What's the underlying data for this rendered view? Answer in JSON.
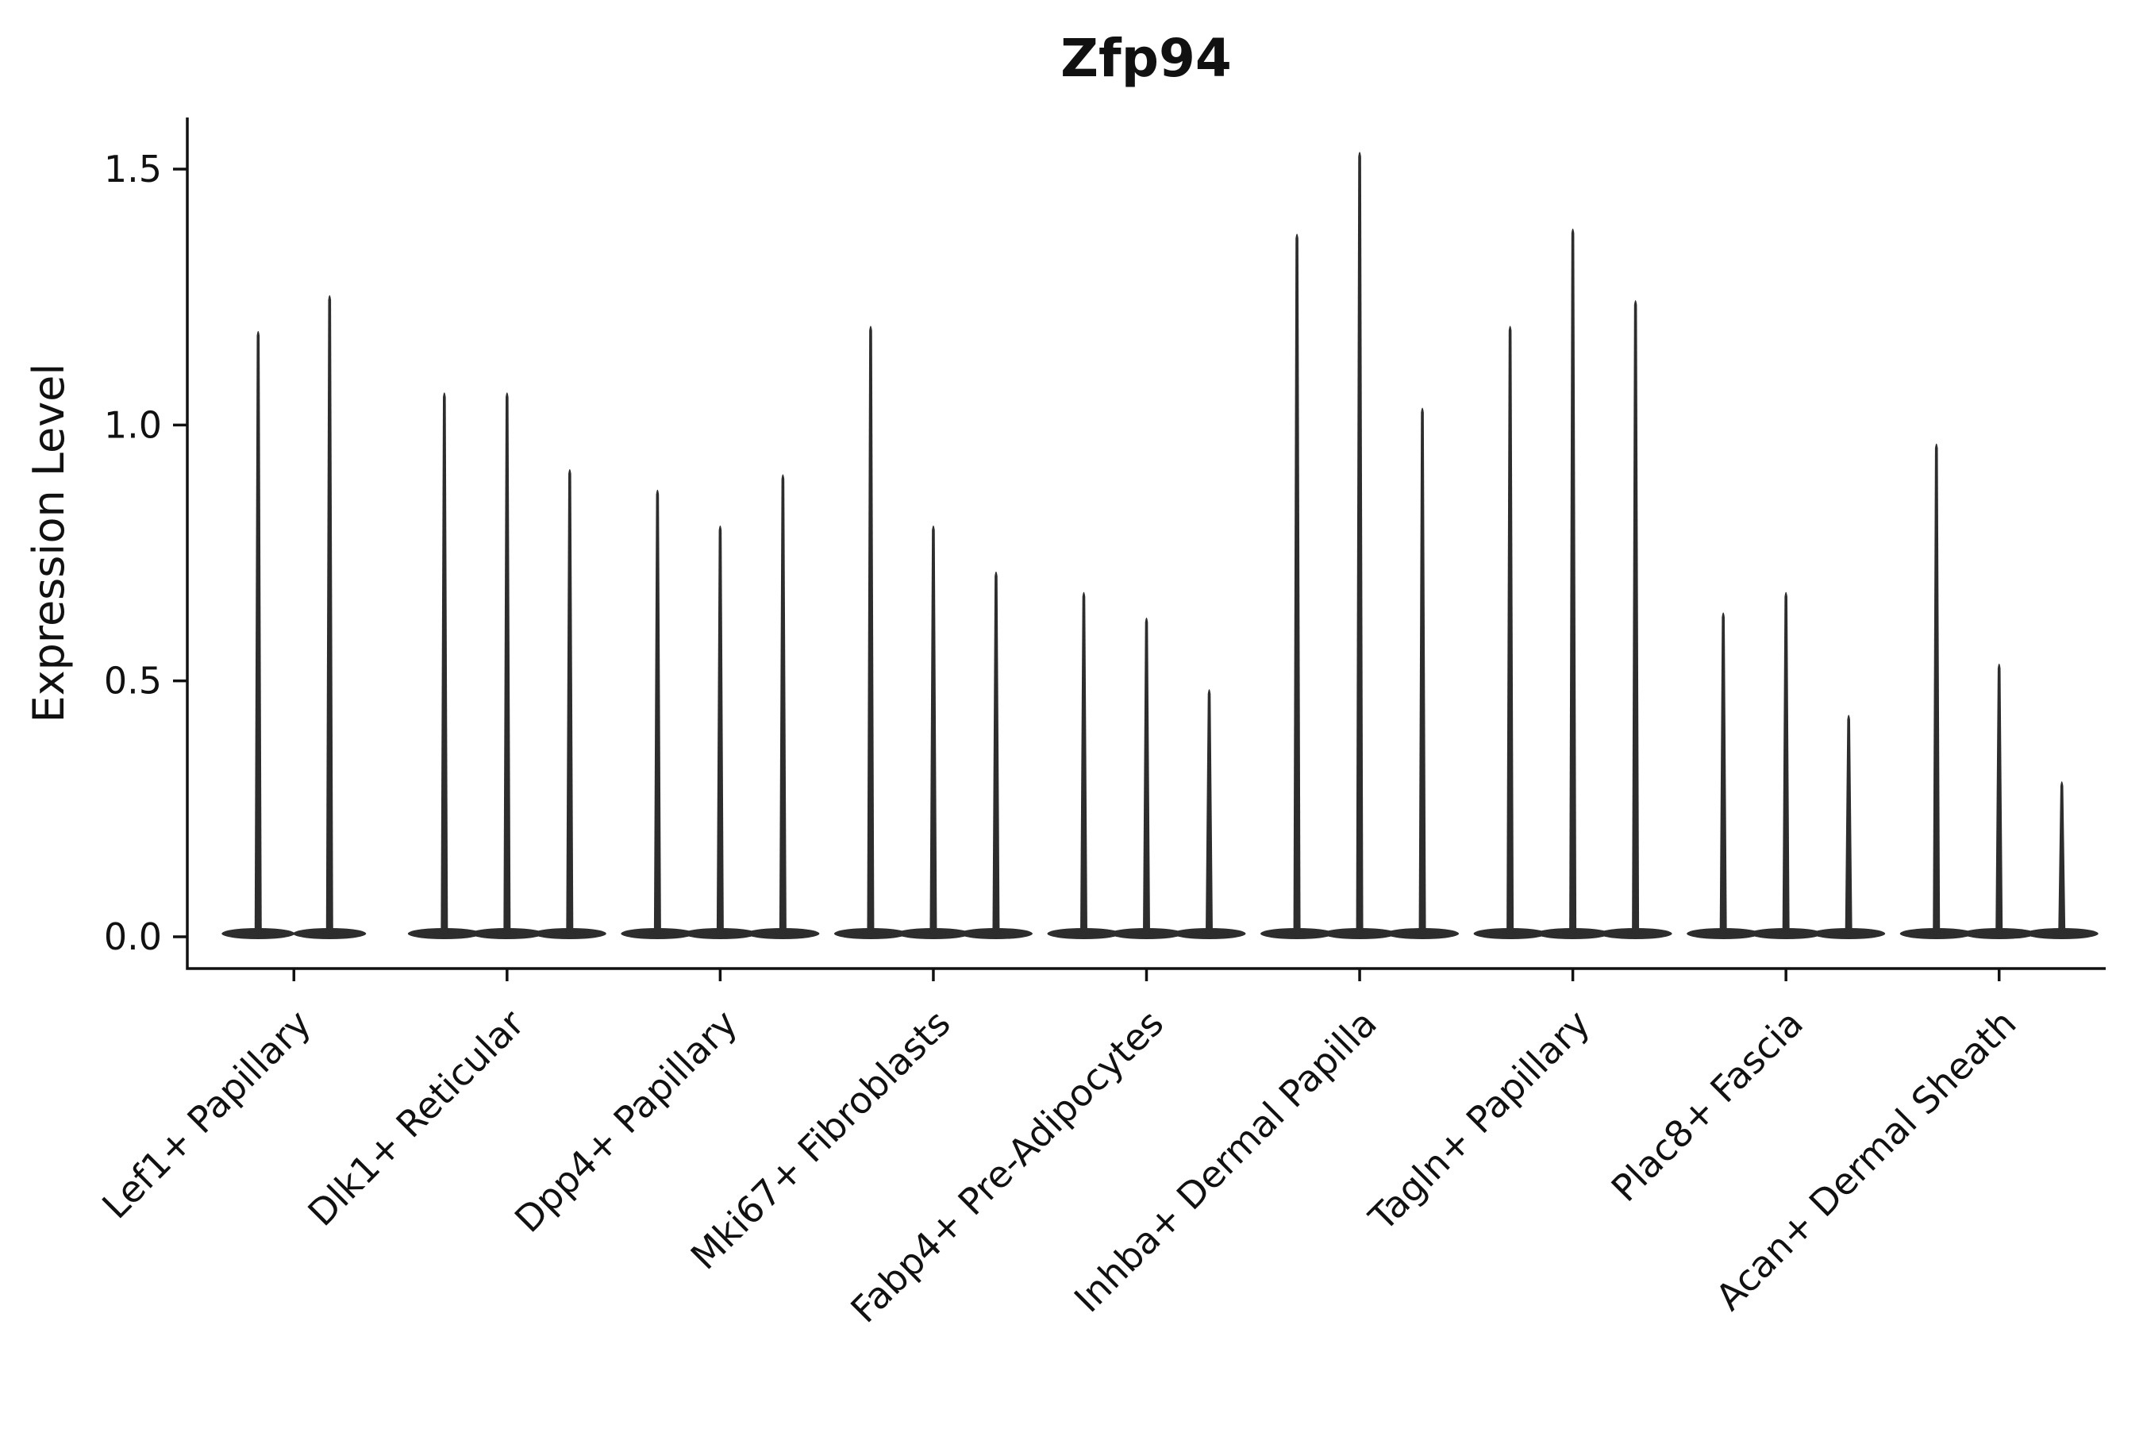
{
  "chart_data": {
    "type": "violin",
    "title": "Zfp94",
    "ylabel": "Expression Level",
    "xlabel": "",
    "ylim": [
      0,
      1.6
    ],
    "yticks": [
      "0.0",
      "0.5",
      "1.0",
      "1.5"
    ],
    "ytick_values": [
      0.0,
      0.5,
      1.0,
      1.5
    ],
    "grid": false,
    "legend": "none",
    "color": "#2d2d2d",
    "background": "#ffffff",
    "categories": [
      "Lef1+ Papillary",
      "Dlk1+ Reticular",
      "Dpp4+ Papillary",
      "Mki67+ Fibroblasts",
      "Fabp4+ Pre-Adipocytes",
      "Inhba+ Dermal Papilla",
      "Tagln+ Papillary",
      "Plac8+ Fascia",
      "Acan+ Dermal Sheath"
    ],
    "violins": [
      {
        "category": "Lef1+ Papillary",
        "peaks": [
          1.19,
          1.26
        ]
      },
      {
        "category": "Dlk1+ Reticular",
        "peaks": [
          1.07,
          1.07,
          0.92
        ]
      },
      {
        "category": "Dpp4+ Papillary",
        "peaks": [
          0.88,
          0.81,
          0.91
        ]
      },
      {
        "category": "Mki67+ Fibroblasts",
        "peaks": [
          1.2,
          0.81,
          0.72
        ]
      },
      {
        "category": "Fabp4+ Pre-Adipocytes",
        "peaks": [
          0.68,
          0.63,
          0.49
        ]
      },
      {
        "category": "Inhba+ Dermal Papilla",
        "peaks": [
          1.38,
          1.54,
          1.04
        ]
      },
      {
        "category": "Tagln+ Papillary",
        "peaks": [
          1.2,
          1.39,
          1.25
        ]
      },
      {
        "category": "Plac8+ Fascia",
        "peaks": [
          0.64,
          0.68,
          0.44
        ]
      },
      {
        "category": "Acan+ Dermal Sheath",
        "peaks": [
          0.97,
          0.54,
          0.31
        ]
      }
    ]
  }
}
